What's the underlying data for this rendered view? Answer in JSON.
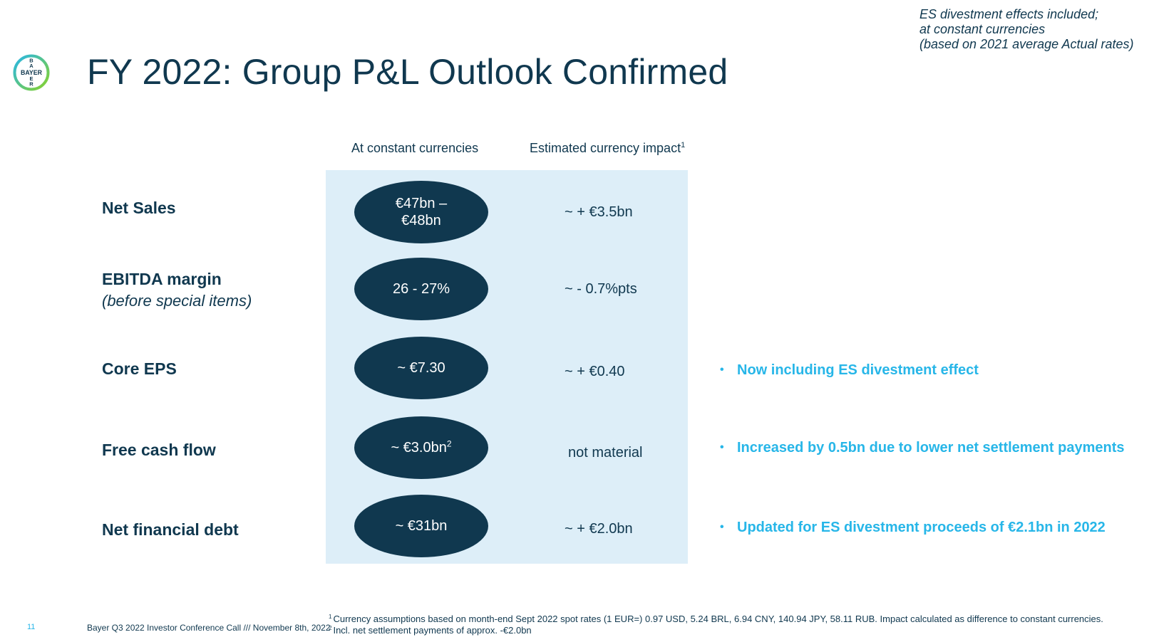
{
  "header": {
    "title": "FY 2022: Group P&L Outlook Confirmed",
    "logo_text": "BAYER",
    "note_lines": [
      "ES divestment effects included;",
      "at constant currencies",
      "(based on 2021 average Actual rates)"
    ]
  },
  "columns": {
    "constant": "At constant currencies",
    "impact": "Estimated currency impact",
    "impact_footnote_mark": "1"
  },
  "rows": [
    {
      "label": "Net Sales",
      "sublabel": "",
      "value_line1": "€47bn –",
      "value_line2": "€48bn",
      "value_sup": "",
      "impact": "~ + €3.5bn",
      "note": ""
    },
    {
      "label": "EBITDA margin",
      "sublabel": "(before special items)",
      "value_line1": "26 - 27%",
      "value_line2": "",
      "value_sup": "",
      "impact": "~ - 0.7%pts",
      "note": ""
    },
    {
      "label": "Core EPS",
      "sublabel": "",
      "value_line1": "~ €7.30",
      "value_line2": "",
      "value_sup": "",
      "impact": "~ + €0.40",
      "note": "Now including ES divestment effect"
    },
    {
      "label": "Free cash flow",
      "sublabel": "",
      "value_line1": "~ €3.0bn",
      "value_line2": "",
      "value_sup": "2",
      "impact": "not material",
      "note": "Increased by 0.5bn due to lower net settlement payments"
    },
    {
      "label": "Net financial debt",
      "sublabel": "",
      "value_line1": "~ €31bn",
      "value_line2": "",
      "value_sup": "",
      "impact": "~ + €2.0bn",
      "note": "Updated for ES divestment proceeds of €2.1bn in 2022"
    }
  ],
  "footer": {
    "page_number": "11",
    "source": "Bayer Q3 2022 Investor Conference Call /// November 8th, 2022",
    "footnotes": [
      {
        "mark": "1",
        "text": "Currency assumptions based on month-end Sept 2022 spot rates (1 EUR=) 0.97 USD, 5.24 BRL, 6.94 CNY, 140.94 JPY, 58.11 RUB. Impact calculated as difference to constant currencies."
      },
      {
        "mark": "2",
        "text": "Incl. net settlement payments of approx. -€2.0bn"
      }
    ]
  },
  "colors": {
    "navy": "#10384f",
    "accent_blue": "#27b6e8",
    "panel": "#ddeef8",
    "logo_green": "#89d329"
  }
}
